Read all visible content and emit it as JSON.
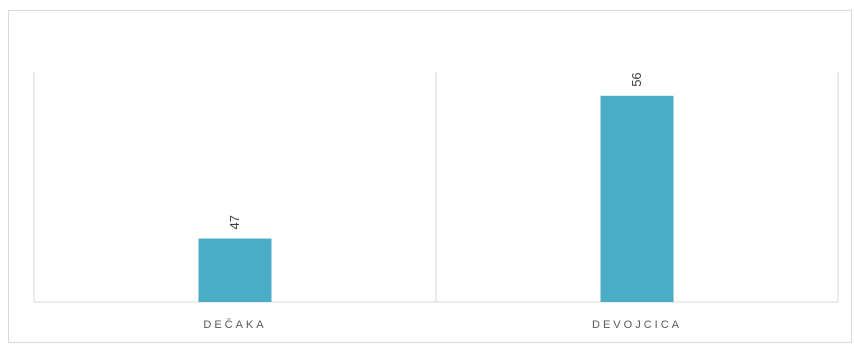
{
  "chart_data": {
    "type": "bar",
    "categories": [
      "DEČAKA",
      "DEVOJCICA"
    ],
    "values": [
      47,
      56
    ],
    "title": "",
    "xlabel": "",
    "ylabel": "",
    "ylim": [
      43,
      57.5
    ],
    "grid": true,
    "legend": "none",
    "bar_color": "#4BACC6",
    "data_labels": true,
    "data_label_orientation": "vertical"
  }
}
